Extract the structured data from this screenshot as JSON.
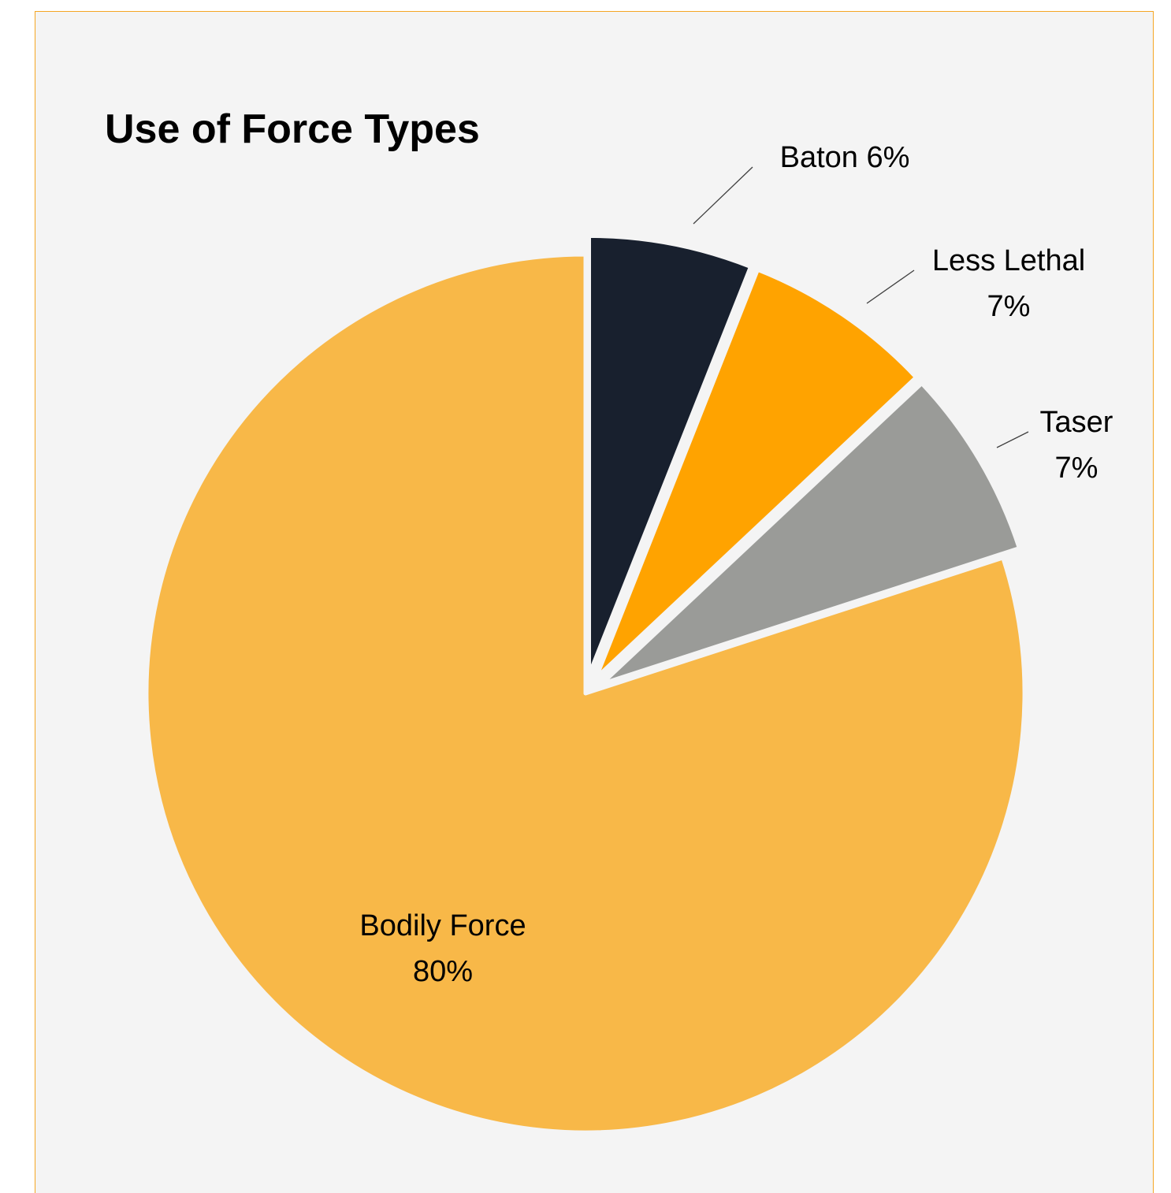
{
  "chart_data": {
    "type": "pie",
    "title": "Use of Force Types",
    "start_angle_deg": 0,
    "direction": "clockwise",
    "exploded": true,
    "slices": [
      {
        "key": "baton",
        "name": "Baton",
        "value": 6,
        "percent_label": "6%",
        "color": "#18202E",
        "label_lines": [
          "Baton 6%"
        ]
      },
      {
        "key": "less-lethal",
        "name": "Less Lethal",
        "value": 7,
        "percent_label": "7%",
        "color": "#FFA300",
        "label_lines": [
          "Less Lethal",
          "7%"
        ]
      },
      {
        "key": "taser",
        "name": "Taser",
        "value": 7,
        "percent_label": "7%",
        "color": "#9A9B98",
        "label_lines": [
          "Taser",
          "7%"
        ]
      },
      {
        "key": "bodily-force",
        "name": "Bodily Force",
        "value": 80,
        "percent_label": "80%",
        "color": "#F8B848",
        "label_lines": [
          "Bodily Force",
          "80%"
        ]
      }
    ]
  },
  "colors": {
    "background": "#F4F4F4",
    "frame_border": "#F5A623",
    "text": "#000000",
    "leader_line": "#404040"
  }
}
